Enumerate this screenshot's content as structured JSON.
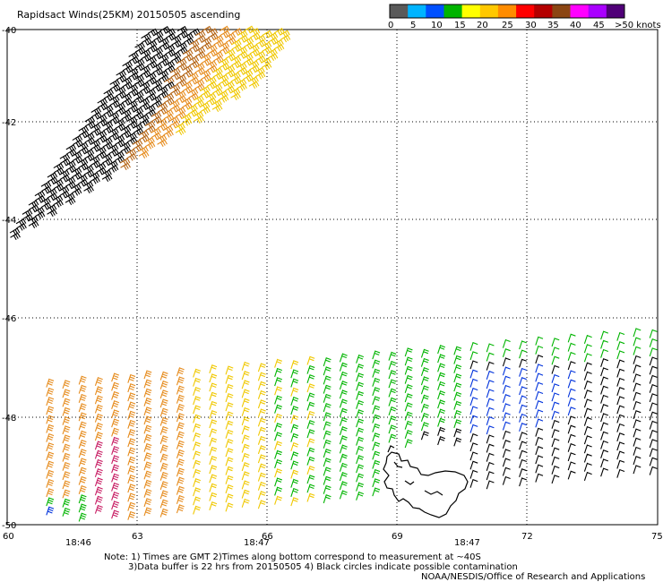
{
  "title": "Rapidsact Winds(25KM) 20150505 ascending",
  "legend": {
    "colors": [
      "#5a5a5a",
      "#00b4ff",
      "#0050ff",
      "#00b400",
      "#ffff00",
      "#ffc800",
      "#ff8c00",
      "#ff0000",
      "#b40000",
      "#8b4513",
      "#ff00ff",
      "#aa00ff",
      "#500078"
    ],
    "labels": [
      "0",
      "5",
      "10",
      "15",
      "20",
      "25",
      "30",
      "35",
      "40",
      "45",
      ">50 knots"
    ]
  },
  "map": {
    "lon_labels": [
      "60",
      "63",
      "66",
      "69",
      "72",
      "75"
    ],
    "lat_labels": [
      "-40",
      "-42",
      "-44",
      "-46",
      "-48",
      "-50"
    ],
    "times": [
      "18:46",
      "18:47",
      "18:47"
    ],
    "time_color": "#800080",
    "barb_colors": {
      "black": "#000000",
      "brown": "#b46414",
      "orange": "#e68c1e",
      "yellow": "#f0c800",
      "green": "#00b400",
      "blue": "#0032dc",
      "pink": "#c81e64"
    }
  },
  "footer": {
    "note1": "Note: 1) Times are GMT 2)Times along bottom correspond to measurement at ~40S",
    "note2": "3)Data buffer is 22 hrs from 20150505 4) Black circles indicate possible contamination",
    "credit": "NOAA/NESDIS/Office of Research and Applications"
  }
}
